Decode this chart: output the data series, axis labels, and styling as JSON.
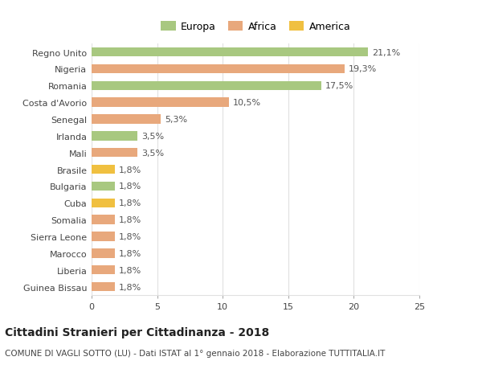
{
  "categories": [
    "Guinea Bissau",
    "Liberia",
    "Marocco",
    "Sierra Leone",
    "Somalia",
    "Cuba",
    "Bulgaria",
    "Brasile",
    "Mali",
    "Irlanda",
    "Senegal",
    "Costa d'Avorio",
    "Romania",
    "Nigeria",
    "Regno Unito"
  ],
  "values": [
    1.8,
    1.8,
    1.8,
    1.8,
    1.8,
    1.8,
    1.8,
    1.8,
    3.5,
    3.5,
    5.3,
    10.5,
    17.5,
    19.3,
    21.1
  ],
  "labels": [
    "1,8%",
    "1,8%",
    "1,8%",
    "1,8%",
    "1,8%",
    "1,8%",
    "1,8%",
    "1,8%",
    "3,5%",
    "3,5%",
    "5,3%",
    "10,5%",
    "17,5%",
    "19,3%",
    "21,1%"
  ],
  "colors": [
    "#e8a87c",
    "#e8a87c",
    "#e8a87c",
    "#e8a87c",
    "#e8a87c",
    "#f0c040",
    "#a8c880",
    "#f0c040",
    "#e8a87c",
    "#a8c880",
    "#e8a87c",
    "#e8a87c",
    "#a8c880",
    "#e8a87c",
    "#a8c880"
  ],
  "legend_labels": [
    "Europa",
    "Africa",
    "America"
  ],
  "legend_colors": [
    "#a8c880",
    "#e8a87c",
    "#f0c040"
  ],
  "xlim": [
    0,
    25
  ],
  "xticks": [
    0,
    5,
    10,
    15,
    20,
    25
  ],
  "title": "Cittadini Stranieri per Cittadinanza - 2018",
  "subtitle": "COMUNE DI VAGLI SOTTO (LU) - Dati ISTAT al 1° gennaio 2018 - Elaborazione TUTTITALIA.IT",
  "bg_color": "#ffffff",
  "grid_color": "#e0e0e0",
  "bar_height": 0.55,
  "label_fontsize": 8,
  "tick_fontsize": 8,
  "title_fontsize": 10,
  "subtitle_fontsize": 7.5
}
